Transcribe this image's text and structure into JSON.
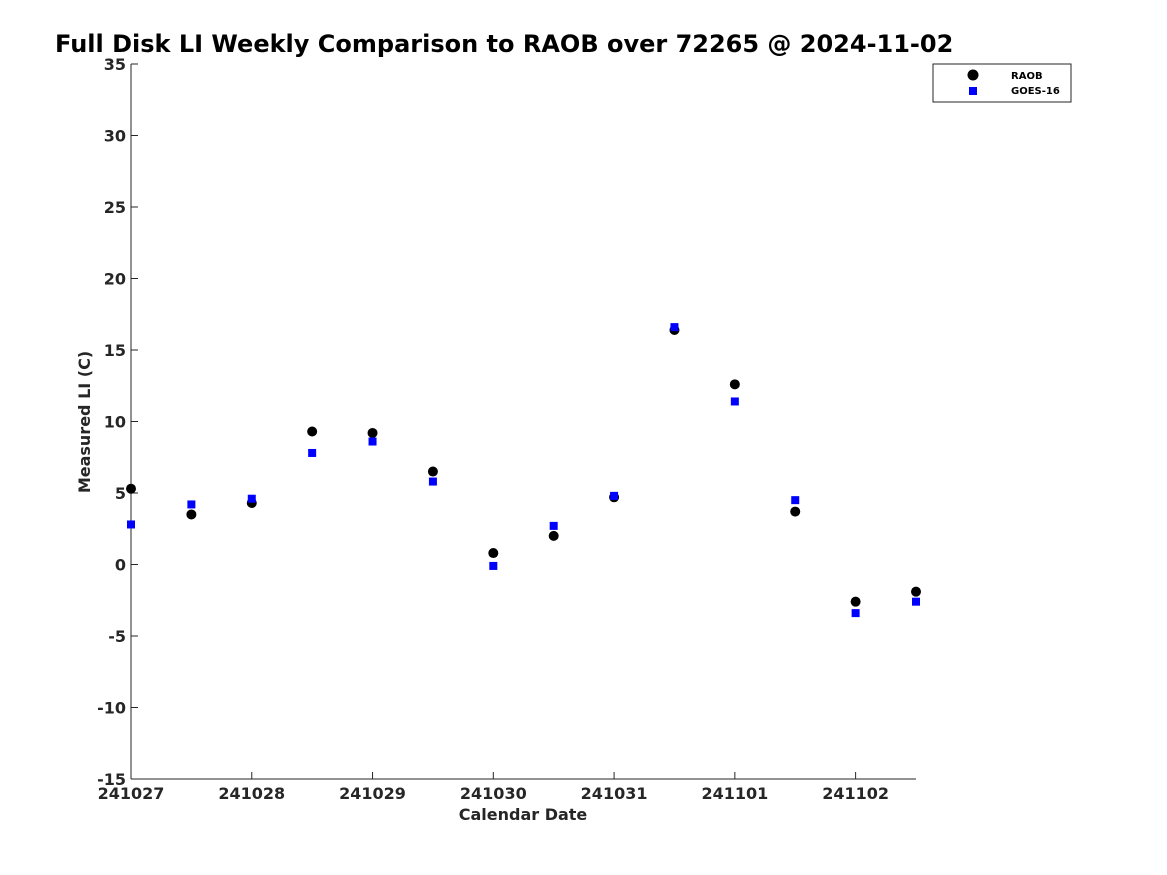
{
  "chart_data": {
    "type": "scatter",
    "title": "Full Disk LI Weekly Comparison to RAOB over 72265 @ 2024-11-02",
    "xlabel": "Calendar Date",
    "ylabel": "Measured LI (C)",
    "xlim": [
      "2024-10-27",
      "2024-11-02 12:00"
    ],
    "ylim": [
      -15,
      35
    ],
    "x_tick_labels": [
      "241027",
      "241028",
      "241029",
      "241030",
      "241031",
      "241101",
      "241102"
    ],
    "y_tick_labels": [
      "-15",
      "-10",
      "-5",
      "0",
      "5",
      "10",
      "15",
      "20",
      "25",
      "30",
      "35"
    ],
    "grid": false,
    "legend_position": "top-right",
    "x": [
      "2024-10-27 00:00",
      "2024-10-27 12:00",
      "2024-10-28 00:00",
      "2024-10-28 12:00",
      "2024-10-29 00:00",
      "2024-10-29 12:00",
      "2024-10-30 00:00",
      "2024-10-30 12:00",
      "2024-10-31 00:00",
      "2024-10-31 12:00",
      "2024-11-01 00:00",
      "2024-11-01 12:00",
      "2024-11-02 00:00",
      "2024-11-02 12:00"
    ],
    "series": [
      {
        "name": "RAOB",
        "marker": "circle",
        "color": "#000000",
        "values": [
          5.3,
          3.5,
          4.3,
          9.3,
          9.2,
          6.5,
          0.8,
          2.0,
          4.7,
          16.4,
          12.6,
          3.7,
          -2.6,
          -1.9
        ]
      },
      {
        "name": "GOES-16",
        "marker": "square",
        "color": "#0000ff",
        "values": [
          2.8,
          4.2,
          4.6,
          7.8,
          8.6,
          5.8,
          -0.1,
          2.7,
          4.8,
          16.6,
          11.4,
          4.5,
          -3.4,
          -2.6
        ]
      }
    ]
  }
}
